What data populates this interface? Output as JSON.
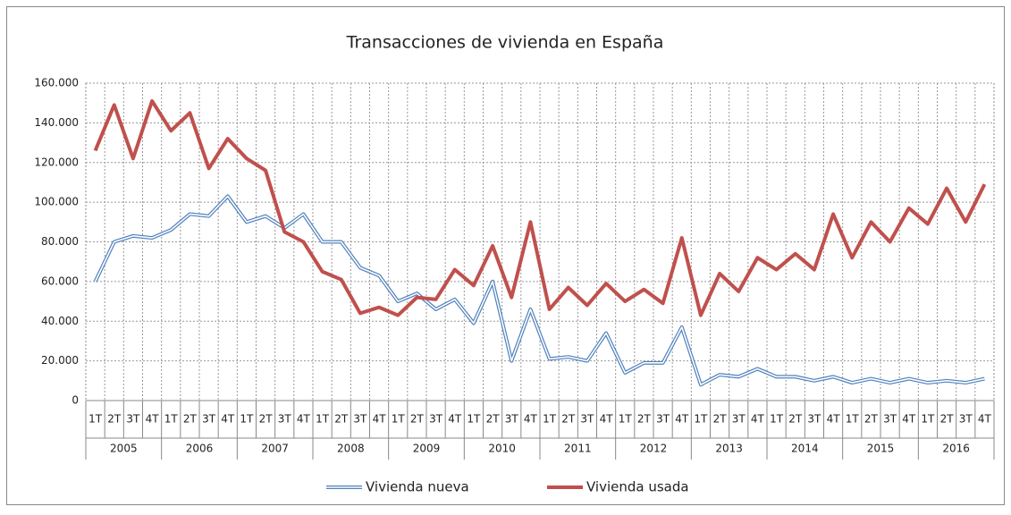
{
  "chart_data": {
    "type": "line",
    "title": "Transacciones de vivienda en España",
    "categories": [
      "1T",
      "2T",
      "3T",
      "4T",
      "1T",
      "2T",
      "3T",
      "4T",
      "1T",
      "2T",
      "3T",
      "4T",
      "1T",
      "2T",
      "3T",
      "4T",
      "1T",
      "2T",
      "3T",
      "4T",
      "1T",
      "2T",
      "3T",
      "4T",
      "1T",
      "2T",
      "3T",
      "4T",
      "1T",
      "2T",
      "3T",
      "4T",
      "1T",
      "2T",
      "3T",
      "4T",
      "1T",
      "2T",
      "3T",
      "4T",
      "1T",
      "2T",
      "3T",
      "4T",
      "1T",
      "2T",
      "3T",
      "4T"
    ],
    "years": [
      "2005",
      "2006",
      "2007",
      "2008",
      "2009",
      "2010",
      "2011",
      "2012",
      "2013",
      "2014",
      "2015",
      "2016"
    ],
    "series": [
      {
        "name": "Vivienda nueva",
        "color": "#4f81bd",
        "values": [
          60000,
          80000,
          83000,
          82000,
          86000,
          94000,
          93000,
          103000,
          90000,
          93000,
          87000,
          94000,
          80000,
          80000,
          67000,
          63000,
          50000,
          54000,
          46000,
          51000,
          39000,
          60000,
          20000,
          46000,
          21000,
          22000,
          20000,
          34000,
          14000,
          19000,
          19000,
          37000,
          8000,
          13000,
          12000,
          16000,
          12000,
          12000,
          10000,
          12000,
          9000,
          11000,
          9000,
          11000,
          9000,
          10000,
          9000,
          11000
        ]
      },
      {
        "name": "Vivienda usada",
        "color": "#c0504d",
        "values": [
          126000,
          149000,
          122000,
          151000,
          136000,
          145000,
          117000,
          132000,
          122000,
          116000,
          85000,
          80000,
          65000,
          61000,
          44000,
          47000,
          43000,
          52000,
          51000,
          66000,
          58000,
          78000,
          52000,
          90000,
          46000,
          57000,
          48000,
          59000,
          50000,
          56000,
          49000,
          82000,
          43000,
          64000,
          55000,
          72000,
          66000,
          74000,
          66000,
          94000,
          72000,
          90000,
          80000,
          97000,
          89000,
          107000,
          90000,
          109000
        ]
      }
    ],
    "ylim": [
      0,
      160000
    ],
    "yticks": [
      0,
      {
        "value": 20000,
        "label": "20.000"
      },
      {
        "value": 40000,
        "label": "40.000"
      },
      {
        "value": 60000,
        "label": "60.000"
      },
      {
        "value": 80000,
        "label": "80.000"
      },
      {
        "value": 100000,
        "label": "100.000"
      },
      {
        "value": 120000,
        "label": "120.000"
      },
      {
        "value": 140000,
        "label": "140.000"
      },
      {
        "value": 160000,
        "label": "160.000"
      }
    ],
    "grid": true
  }
}
